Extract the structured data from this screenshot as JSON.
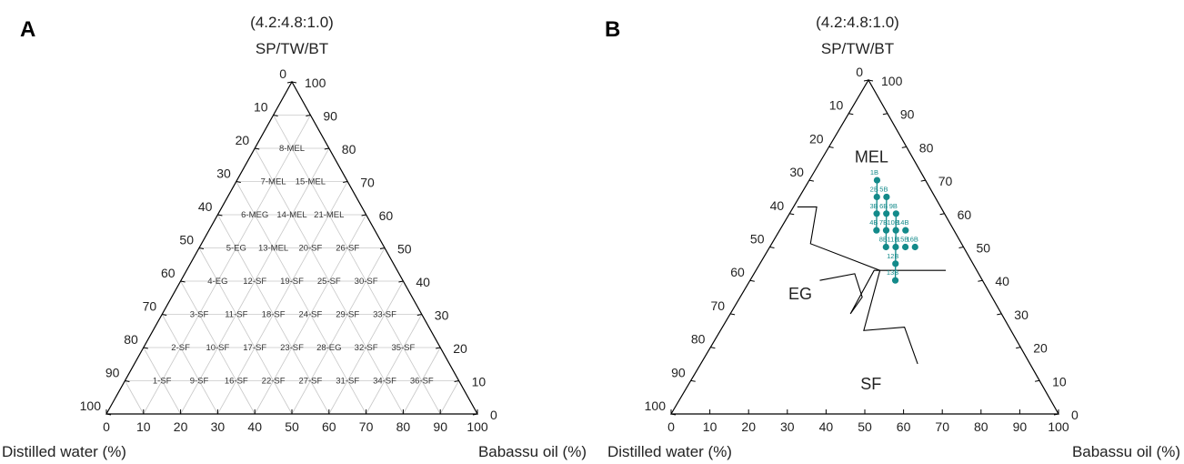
{
  "panels": [
    {
      "panel_label": "A",
      "ratio_label": "(4.2:4.8:1.0)",
      "apex_label": "SP/TW/BT",
      "xlabel_left": "Distilled water (%)",
      "xlabel_right": "Babassu oil (%)",
      "bottom_ticks": [
        "0",
        "10",
        "20",
        "30",
        "40",
        "50",
        "60",
        "70",
        "80",
        "90",
        "100"
      ],
      "left_ticks": [
        "0",
        "10",
        "20",
        "30",
        "40",
        "50",
        "60",
        "70",
        "80",
        "90",
        "100"
      ],
      "right_ticks": [
        "100",
        "90",
        "80",
        "70",
        "60",
        "50",
        "40",
        "30",
        "20",
        "10",
        "0"
      ]
    },
    {
      "panel_label": "B",
      "ratio_label": "(4.2:4.8:1.0)",
      "apex_label": "SP/TW/BT",
      "xlabel_left": "Distilled water (%)",
      "xlabel_right": "Babassu oil (%)",
      "bottom_ticks": [
        "0",
        "10",
        "20",
        "30",
        "40",
        "50",
        "60",
        "70",
        "80",
        "90",
        "100"
      ],
      "left_ticks": [
        "0",
        "10",
        "20",
        "30",
        "40",
        "50",
        "60",
        "70",
        "80",
        "90",
        "100"
      ],
      "right_ticks": [
        "100",
        "90",
        "80",
        "70",
        "60",
        "50",
        "40",
        "30",
        "20",
        "10",
        "0"
      ]
    }
  ],
  "chart_data": [
    {
      "type": "ternary",
      "components": [
        "SP/TW/BT",
        "Distilled water",
        "Babassu oil"
      ],
      "grid": true,
      "cells": [
        {
          "label": "8-MEL",
          "smix": 80,
          "water": 10,
          "oil": 10
        },
        {
          "label": "7-MEL",
          "smix": 70,
          "water": 20,
          "oil": 10
        },
        {
          "label": "15-MEL",
          "smix": 70,
          "water": 10,
          "oil": 20
        },
        {
          "label": "6-MEG",
          "smix": 60,
          "water": 30,
          "oil": 10
        },
        {
          "label": "14-MEL",
          "smix": 60,
          "water": 20,
          "oil": 20
        },
        {
          "label": "21-MEL",
          "smix": 60,
          "water": 10,
          "oil": 30
        },
        {
          "label": "5-EG",
          "smix": 50,
          "water": 40,
          "oil": 10
        },
        {
          "label": "13-MEL",
          "smix": 50,
          "water": 30,
          "oil": 20
        },
        {
          "label": "20-SF",
          "smix": 50,
          "water": 20,
          "oil": 30
        },
        {
          "label": "26-SF",
          "smix": 50,
          "water": 10,
          "oil": 40
        },
        {
          "label": "4-EG",
          "smix": 40,
          "water": 50,
          "oil": 10
        },
        {
          "label": "12-SF",
          "smix": 40,
          "water": 40,
          "oil": 20
        },
        {
          "label": "19-SF",
          "smix": 40,
          "water": 30,
          "oil": 30
        },
        {
          "label": "25-SF",
          "smix": 40,
          "water": 20,
          "oil": 40
        },
        {
          "label": "30-SF",
          "smix": 40,
          "water": 10,
          "oil": 50
        },
        {
          "label": "3-SF",
          "smix": 30,
          "water": 60,
          "oil": 10
        },
        {
          "label": "11-SF",
          "smix": 30,
          "water": 50,
          "oil": 20
        },
        {
          "label": "18-SF",
          "smix": 30,
          "water": 40,
          "oil": 30
        },
        {
          "label": "24-SF",
          "smix": 30,
          "water": 30,
          "oil": 40
        },
        {
          "label": "29-SF",
          "smix": 30,
          "water": 20,
          "oil": 50
        },
        {
          "label": "33-SF",
          "smix": 30,
          "water": 10,
          "oil": 60
        },
        {
          "label": "2-SF",
          "smix": 20,
          "water": 70,
          "oil": 10
        },
        {
          "label": "10-SF",
          "smix": 20,
          "water": 60,
          "oil": 20
        },
        {
          "label": "17-SF",
          "smix": 20,
          "water": 50,
          "oil": 30
        },
        {
          "label": "23-SF",
          "smix": 20,
          "water": 40,
          "oil": 40
        },
        {
          "label": "28-EG",
          "smix": 20,
          "water": 30,
          "oil": 50
        },
        {
          "label": "32-SF",
          "smix": 20,
          "water": 20,
          "oil": 60
        },
        {
          "label": "35-SF",
          "smix": 20,
          "water": 10,
          "oil": 70
        },
        {
          "label": "1-SF",
          "smix": 10,
          "water": 80,
          "oil": 10
        },
        {
          "label": "9-SF",
          "smix": 10,
          "water": 70,
          "oil": 20
        },
        {
          "label": "16-SF",
          "smix": 10,
          "water": 60,
          "oil": 30
        },
        {
          "label": "22-SF",
          "smix": 10,
          "water": 50,
          "oil": 40
        },
        {
          "label": "27-SF",
          "smix": 10,
          "water": 40,
          "oil": 50
        },
        {
          "label": "31-SF",
          "smix": 10,
          "water": 30,
          "oil": 60
        },
        {
          "label": "34-SF",
          "smix": 10,
          "water": 20,
          "oil": 70
        },
        {
          "label": "36-SF",
          "smix": 10,
          "water": 10,
          "oil": 80
        }
      ]
    },
    {
      "type": "ternary",
      "components": [
        "SP/TW/BT",
        "Distilled water",
        "Babassu oil"
      ],
      "grid": false,
      "region_labels": [
        {
          "label": "MEL",
          "smix": 77,
          "water": 10.5,
          "oil": 12.5
        },
        {
          "label": "EG",
          "smix": 36,
          "water": 49,
          "oil": 15
        },
        {
          "label": "SF",
          "smix": 9,
          "water": 44,
          "oil": 47
        }
      ],
      "formulations": [
        {
          "label": "1B",
          "smix": 70,
          "water": 12.5,
          "oil": 17.5
        },
        {
          "label": "2B",
          "smix": 65,
          "water": 15,
          "oil": 20
        },
        {
          "label": "5B",
          "smix": 65,
          "water": 12.5,
          "oil": 22.5
        },
        {
          "label": "3B",
          "smix": 60,
          "water": 17.5,
          "oil": 22.5
        },
        {
          "label": "6B",
          "smix": 60,
          "water": 15,
          "oil": 25
        },
        {
          "label": "9B",
          "smix": 60,
          "water": 12.5,
          "oil": 27.5
        },
        {
          "label": "4B",
          "smix": 55,
          "water": 20,
          "oil": 25
        },
        {
          "label": "7B",
          "smix": 55,
          "water": 17.5,
          "oil": 27.5
        },
        {
          "label": "10B",
          "smix": 55,
          "water": 15,
          "oil": 30
        },
        {
          "label": "14B",
          "smix": 55,
          "water": 12.5,
          "oil": 32.5
        },
        {
          "label": "8B",
          "smix": 50,
          "water": 20,
          "oil": 30
        },
        {
          "label": "11B",
          "smix": 50,
          "water": 17.5,
          "oil": 32.5
        },
        {
          "label": "15B",
          "smix": 50,
          "water": 15,
          "oil": 35
        },
        {
          "label": "16B",
          "smix": 50,
          "water": 12.5,
          "oil": 37.5
        },
        {
          "label": "12B",
          "smix": 45,
          "water": 20,
          "oil": 35
        },
        {
          "label": "13B",
          "smix": 40,
          "water": 22.5,
          "oil": 37.5
        }
      ],
      "connecting_lines": [
        [
          "1B",
          "2B",
          "3B",
          "4B"
        ],
        [
          "5B",
          "6B",
          "7B",
          "8B"
        ],
        [
          "9B",
          "10B",
          "11B",
          "12B",
          "13B"
        ]
      ],
      "phase_boundaries": [
        [
          {
            "smix": 40,
            "water": 42,
            "oil": 18
          },
          {
            "smix": 42,
            "water": 32,
            "oil": 26
          },
          {
            "smix": 35,
            "water": 33.5,
            "oil": 31.5
          },
          {
            "smix": 30,
            "water": 39,
            "oil": 31
          },
          {
            "smix": 43,
            "water": 26.5,
            "oil": 30.5
          },
          {
            "smix": 43,
            "water": 8,
            "oil": 49
          }
        ],
        [
          {
            "smix": 62,
            "water": 37,
            "oil": 1
          },
          {
            "smix": 62,
            "water": 32,
            "oil": 6
          },
          {
            "smix": 51,
            "water": 39,
            "oil": 10
          },
          {
            "smix": 43,
            "water": 25,
            "oil": 32
          },
          {
            "smix": 25,
            "water": 38,
            "oil": 37
          },
          {
            "smix": 26,
            "water": 27,
            "oil": 47
          },
          {
            "smix": 15,
            "water": 29,
            "oil": 56
          }
        ]
      ]
    }
  ]
}
